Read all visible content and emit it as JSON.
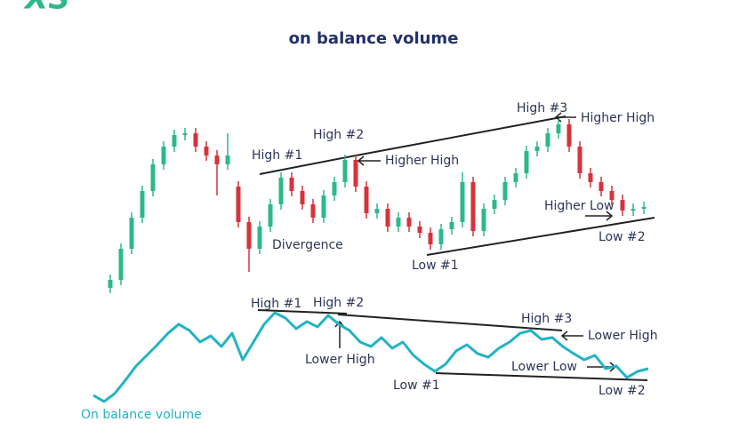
{
  "logo": "XS",
  "chart_data": [
    {
      "type": "candlestick",
      "title": "on balance volume",
      "up_color": "#2db88c",
      "down_color": "#d7323d",
      "ylim": [
        0,
        100
      ],
      "open": [
        3,
        7.5,
        25,
        42.5,
        57.5,
        72.5,
        82.5,
        89,
        90,
        82.5,
        77.5,
        72.5,
        60,
        40,
        25,
        37.5,
        50,
        65,
        57.5,
        50,
        42.5,
        55,
        62.5,
        75,
        60,
        45,
        47.5,
        37.5,
        42.5,
        37.5,
        34,
        27.5,
        36,
        40,
        62.5,
        35,
        47.5,
        52.5,
        62.5,
        67.5,
        80,
        82.5,
        90,
        95,
        82.5,
        67.5,
        62.5,
        57.5,
        52.5,
        46.5,
        47.5
      ],
      "high": [
        10.5,
        28,
        45.5,
        60.5,
        75.5,
        85.5,
        92,
        93,
        93,
        85.5,
        80.5,
        90,
        63,
        43,
        40.5,
        53,
        68,
        68,
        60.5,
        53,
        58,
        65.5,
        78,
        78,
        63,
        50.5,
        50.5,
        45.5,
        45.5,
        40.5,
        37,
        39,
        43,
        68,
        65.5,
        50.5,
        55.5,
        65.5,
        70.5,
        83,
        85.5,
        93,
        98,
        98,
        85.5,
        70.5,
        65.5,
        60.5,
        55.5,
        50.5,
        51.5
      ],
      "low": [
        0,
        4.5,
        22,
        39.5,
        54.5,
        69.5,
        79.5,
        86,
        79.5,
        74.5,
        55,
        69.5,
        37,
        12,
        22,
        34.5,
        47,
        54.5,
        47,
        39.5,
        39.5,
        52,
        59.5,
        57,
        42,
        42,
        34.5,
        34.5,
        34.5,
        31,
        24.5,
        24.5,
        33,
        37,
        32,
        32,
        44.5,
        49.5,
        59.5,
        64.5,
        77,
        79.5,
        87,
        79.5,
        64.5,
        59.5,
        54.5,
        49.5,
        43.5,
        43.5,
        44.5
      ],
      "close": [
        7.5,
        25,
        42.5,
        57.5,
        72.5,
        82.5,
        89,
        90,
        82.5,
        77.5,
        72.5,
        77.5,
        40,
        25,
        37.5,
        50,
        65,
        57.5,
        50,
        42.5,
        55,
        62.5,
        75,
        60,
        45,
        47.5,
        37.5,
        42.5,
        37.5,
        34,
        27.5,
        36,
        40,
        62.5,
        35,
        47.5,
        52.5,
        62.5,
        67.5,
        80,
        82.5,
        90,
        95,
        82.5,
        67.5,
        62.5,
        57.5,
        52.5,
        46.5,
        47.5,
        48.5
      ],
      "annotations": [
        "High #1",
        "High #2",
        "Higher High",
        "High #3",
        "Higher High",
        "Divergence",
        "Low #1",
        "Higher Low",
        "Low #2"
      ]
    },
    {
      "type": "line",
      "name": "On balance volume",
      "color": "#22b3c5",
      "ylim": [
        0,
        100
      ],
      "values": [
        12.5,
        6.7,
        14.2,
        26.7,
        40,
        50,
        60,
        70.8,
        79.2,
        73.3,
        62.5,
        68.3,
        58.3,
        70.8,
        45.8,
        62.5,
        79.2,
        90,
        85,
        75,
        81.7,
        76.7,
        87.5,
        79.2,
        73.3,
        62.5,
        58.3,
        66.7,
        56.7,
        62.5,
        50,
        41.7,
        35,
        41.7,
        54.2,
        60,
        51.7,
        48.3,
        56.7,
        62.5,
        70.8,
        73.3,
        65,
        66.7,
        58.3,
        51.7,
        45.8,
        50,
        37.5,
        40,
        29.2,
        35,
        37.5
      ],
      "annotations": [
        "High #1",
        "High #2",
        "Lower High",
        "High #3",
        "Lower High",
        "Low #1",
        "Lower Low",
        "Low #2"
      ]
    }
  ]
}
